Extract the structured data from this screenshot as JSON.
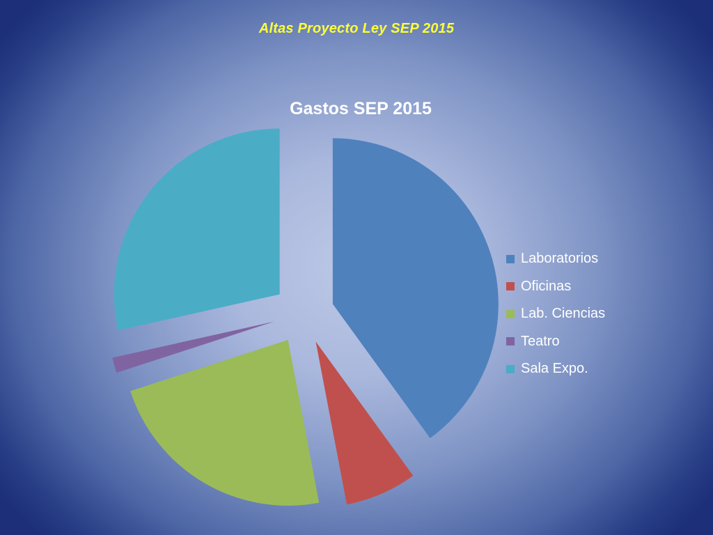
{
  "slide": {
    "title": "Altas Proyecto Ley SEP 2015"
  },
  "chart_data": {
    "type": "pie",
    "title": "Gastos SEP 2015",
    "exploded": true,
    "legend_position": "right",
    "slices": [
      {
        "label": "Laboratorios",
        "value": 40,
        "color": "#4f81bd"
      },
      {
        "label": "Oficinas",
        "value": 7,
        "color": "#c0504d"
      },
      {
        "label": "Lab. Ciencias",
        "value": 23,
        "color": "#9bbb59"
      },
      {
        "label": "Teatro",
        "value": 1.5,
        "color": "#8064a2"
      },
      {
        "label": "Sala Expo.",
        "value": 28.5,
        "color": "#4bacc6"
      }
    ]
  }
}
